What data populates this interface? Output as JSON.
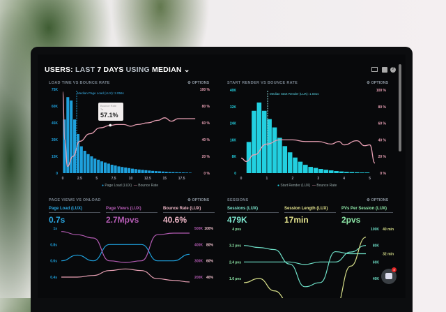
{
  "header": {
    "users": "USERS:",
    "last": "LAST",
    "days": "7 DAYS",
    "using": "USING",
    "median": "MEDIAN",
    "icons": [
      "monitor-icon",
      "chart-icon",
      "help-icon"
    ]
  },
  "panels": {
    "load": {
      "title": "LOAD TIME VS BOUNCE RATE",
      "options": "OPTIONS",
      "median_label": "Median Page Load (LUX): 2.056s",
      "tooltip_label": "Bounce Rate",
      "tooltip_sub": "7s",
      "tooltip_value": "57.1%",
      "legend": [
        "Page Load (LUX)",
        "Bounce Rate"
      ]
    },
    "render": {
      "title": "START RENDER VS BOUNCE RATE",
      "options": "OPTIONS",
      "median_label": "Median Start Render (LUX): 1.031s",
      "legend": [
        "Start Render (LUX)",
        "Bounce Rate"
      ]
    },
    "pageviews": {
      "title": "PAGE VIEWS VS ONLOAD",
      "options": "OPTIONS",
      "kpis": [
        {
          "label": "Page Load (LUX)",
          "value": "0.7s",
          "color": "#2aa6e0"
        },
        {
          "label": "Page Views (LUX)",
          "value": "2.7Mpvs",
          "color": "#b35bb3"
        },
        {
          "label": "Bounce Rate (LUX)",
          "value": "40.6%",
          "color": "#f0b8c8"
        }
      ]
    },
    "sessions": {
      "title": "SESSIONS",
      "options": "OPTIONS",
      "kpis": [
        {
          "label": "Sessions (LUX)",
          "value": "479K",
          "color": "#7ee8d0"
        },
        {
          "label": "Session Length (LUX)",
          "value": "17min",
          "color": "#e8e890"
        },
        {
          "label": "PVs Per Session (LUX)",
          "value": "2pvs",
          "color": "#8ee8a8"
        }
      ]
    }
  },
  "chat": {
    "badge": "4"
  },
  "colors": {
    "blue": "#1ea0dc",
    "cyan": "#22d0e0",
    "pink": "#e8a0b4",
    "purple": "#b35bb3",
    "teal": "#6ee0c8",
    "yellow": "#d8e08a"
  },
  "chart_data": [
    {
      "type": "bar",
      "title": "LOAD TIME VS BOUNCE RATE",
      "xlim": [
        0,
        20
      ],
      "ylim": [
        0,
        75000
      ],
      "y2lim": [
        0,
        100
      ],
      "xticks": [
        "0",
        "2.5",
        "5",
        "7.5",
        "10",
        "12.5",
        "15",
        "17.5"
      ],
      "yticks": [
        "0",
        "15K",
        "30K",
        "45K",
        "60K",
        "75K"
      ],
      "y2ticks": [
        "0 %",
        "20 %",
        "40 %",
        "60 %",
        "80 %",
        "100 %"
      ],
      "bin_width": 0.5,
      "series": [
        {
          "name": "Page Load (LUX)",
          "values": [
            48000,
            68000,
            65000,
            48000,
            35000,
            24000,
            20000,
            17000,
            15000,
            13000,
            12000,
            10500,
            9500,
            8500,
            7500,
            6800,
            6000,
            5500,
            5000,
            4500,
            4000,
            3600,
            3200,
            2900,
            2600,
            2300,
            2000,
            1800,
            1600,
            1400,
            1200,
            1000,
            900,
            800,
            700,
            600,
            500,
            400
          ]
        },
        {
          "name": "Bounce Rate",
          "points": [
            [
              0,
              97
            ],
            [
              0.3,
              40
            ],
            [
              0.7,
              8
            ],
            [
              1.5,
              20
            ],
            [
              2.5,
              38
            ],
            [
              4,
              47
            ],
            [
              5.5,
              54
            ],
            [
              7,
              57
            ],
            [
              8,
              58
            ],
            [
              9,
              58
            ],
            [
              10,
              56
            ],
            [
              11,
              58
            ],
            [
              12.5,
              60
            ],
            [
              14,
              63
            ],
            [
              15,
              66
            ],
            [
              16,
              62
            ],
            [
              17,
              65
            ],
            [
              18,
              65
            ],
            [
              19.5,
              65
            ]
          ]
        }
      ]
    },
    {
      "type": "bar",
      "title": "START RENDER VS BOUNCE RATE",
      "xlim": [
        0,
        5.2
      ],
      "ylim": [
        0,
        40000
      ],
      "y2lim": [
        0,
        100
      ],
      "xticks": [
        "0",
        "1",
        "2",
        "3",
        "4",
        "5"
      ],
      "yticks": [
        "0",
        "8K",
        "16K",
        "24K",
        "32K",
        "40K"
      ],
      "y2ticks": [
        "0 %",
        "20 %",
        "40 %",
        "60 %",
        "80 %",
        "100 %"
      ],
      "bin_width": 0.2,
      "series": [
        {
          "name": "Start Render (LUX)",
          "values": [
            15000,
            30000,
            34000,
            30000,
            26000,
            22000,
            17000,
            13000,
            10000,
            7500,
            5500,
            4000,
            3000,
            2500,
            2000,
            1600,
            1300,
            1000,
            800,
            600,
            500,
            400,
            300,
            300
          ]
        },
        {
          "name": "Bounce Rate",
          "points": [
            [
              0,
              18
            ],
            [
              0.2,
              14
            ],
            [
              0.5,
              22
            ],
            [
              1,
              35
            ],
            [
              1.5,
              40
            ],
            [
              2,
              40
            ],
            [
              2.5,
              38
            ],
            [
              3,
              38
            ],
            [
              3.5,
              35
            ],
            [
              3.8,
              38
            ],
            [
              4,
              34
            ],
            [
              4.5,
              39
            ],
            [
              4.8,
              33
            ],
            [
              5,
              34
            ],
            [
              5.2,
              12
            ]
          ]
        }
      ]
    },
    {
      "type": "line",
      "title": "PAGE VIEWS VS ONLOAD",
      "yticks": [
        "0.4s",
        "0.6s",
        "0.8s",
        "1s"
      ],
      "y2ticks": [
        "200K",
        "300K",
        "400K",
        "500K"
      ],
      "y3ticks": [
        "40%",
        "60%",
        "80%",
        "100%"
      ],
      "series": [
        {
          "name": "Page Load (LUX)",
          "axis": "s",
          "values": [
            0.6,
            0.67,
            0.6,
            0.8,
            0.8,
            0.8,
            0.6,
            0.6,
            0.68
          ]
        },
        {
          "name": "Page Views (LUX)",
          "axis": "K",
          "values": [
            480,
            460,
            440,
            300,
            290,
            300,
            460,
            470,
            470
          ]
        },
        {
          "name": "Bounce Rate (LUX)",
          "axis": "%",
          "values": [
            40,
            40,
            42,
            48,
            50,
            48,
            38,
            36,
            34
          ]
        }
      ]
    },
    {
      "type": "line",
      "title": "SESSIONS",
      "yticks": [
        "1.6 pvs",
        "2.4 pvs",
        "3.2 pvs",
        "4 pvs"
      ],
      "y2ticks": [
        "40K",
        "60K",
        "80K",
        "100K"
      ],
      "y3ticks": [
        "24 min",
        "32 min",
        "40 min"
      ],
      "series": [
        {
          "name": "PVs Per Session (LUX)",
          "axis": "pvs",
          "values": [
            3.2,
            3.1,
            3.0,
            2.3,
            1.2,
            1.4,
            2.9,
            2.8,
            2.8
          ]
        },
        {
          "name": "Sessions (LUX)",
          "axis": "K",
          "values": [
            60,
            60,
            60,
            60,
            57,
            60,
            60,
            72,
            80
          ]
        },
        {
          "name": "Session Length (LUX)",
          "axis": "min",
          "values": [
            14,
            16,
            10,
            4,
            2,
            2,
            2,
            22,
            36
          ]
        }
      ]
    }
  ]
}
